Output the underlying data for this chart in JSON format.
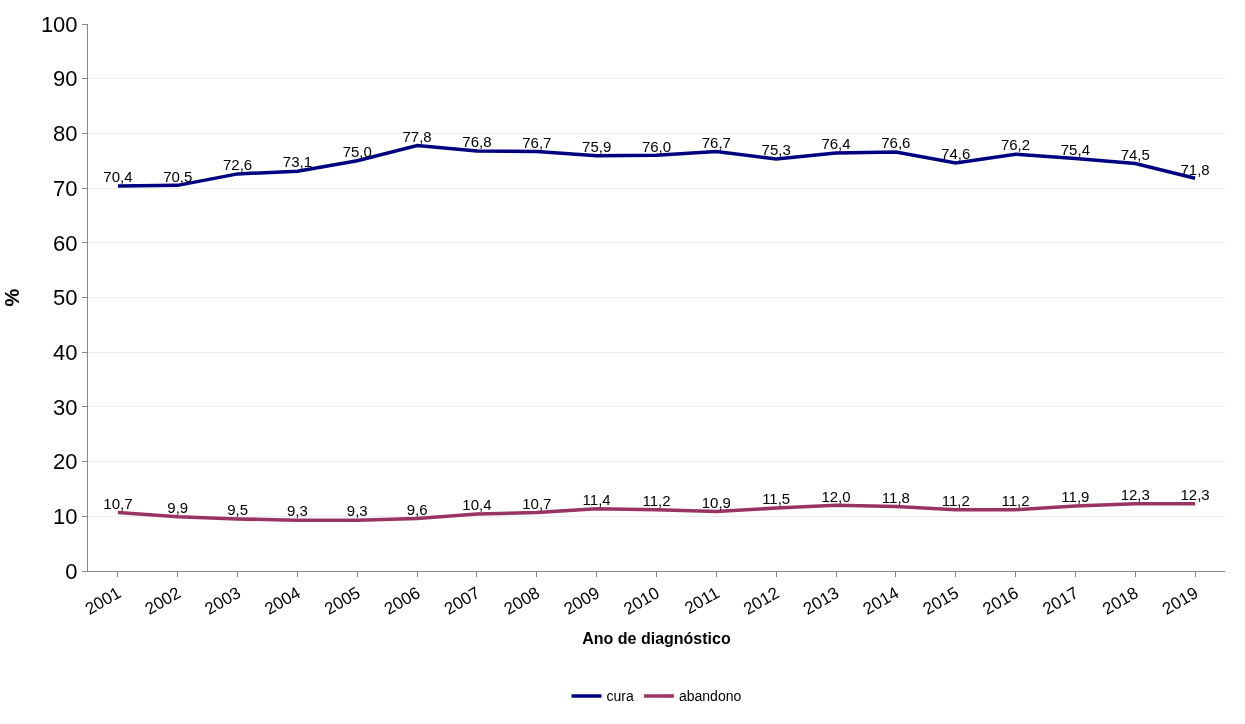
{
  "chart_data": {
    "type": "line",
    "xlabel": "Ano de diagnóstico",
    "ylabel": "%",
    "categories": [
      "2001",
      "2002",
      "2003",
      "2004",
      "2005",
      "2006",
      "2007",
      "2008",
      "2009",
      "2010",
      "2011",
      "2012",
      "2013",
      "2014",
      "2015",
      "2016",
      "2017",
      "2018",
      "2019"
    ],
    "series": [
      {
        "name": "cura",
        "color": "#000080",
        "values": [
          70.4,
          70.5,
          72.6,
          73.1,
          75.0,
          77.8,
          76.8,
          76.7,
          75.9,
          76.0,
          76.7,
          75.3,
          76.4,
          76.6,
          74.6,
          76.2,
          75.4,
          74.5,
          71.8
        ],
        "value_labels": [
          "70,4",
          "70,5",
          "72,6",
          "73,1",
          "75,0",
          "77,8",
          "76,8",
          "76,7",
          "75,9",
          "76,0",
          "76,7",
          "75,3",
          "76,4",
          "76,6",
          "74,6",
          "76,2",
          "75,4",
          "74,5",
          "71,8"
        ]
      },
      {
        "name": "abandono",
        "color": "#993366",
        "values": [
          10.7,
          9.9,
          9.5,
          9.3,
          9.3,
          9.6,
          10.4,
          10.7,
          11.4,
          11.2,
          10.9,
          11.5,
          12.0,
          11.8,
          11.2,
          11.2,
          11.9,
          12.3,
          12.3
        ],
        "value_labels": [
          "10,7",
          "9,9",
          "9,5",
          "9,3",
          "9,3",
          "9,6",
          "10,4",
          "10,7",
          "11,4",
          "11,2",
          "10,9",
          "11,5",
          "12,0",
          "11,8",
          "11,2",
          "11,2",
          "11,9",
          "12,3",
          "12,3"
        ]
      }
    ],
    "ylim": [
      0,
      100
    ],
    "yticks": [
      0,
      10,
      20,
      30,
      40,
      50,
      60,
      70,
      80,
      90,
      100
    ],
    "grid": "y",
    "legend": "bottom",
    "marker": "none",
    "line_style": "solid"
  }
}
